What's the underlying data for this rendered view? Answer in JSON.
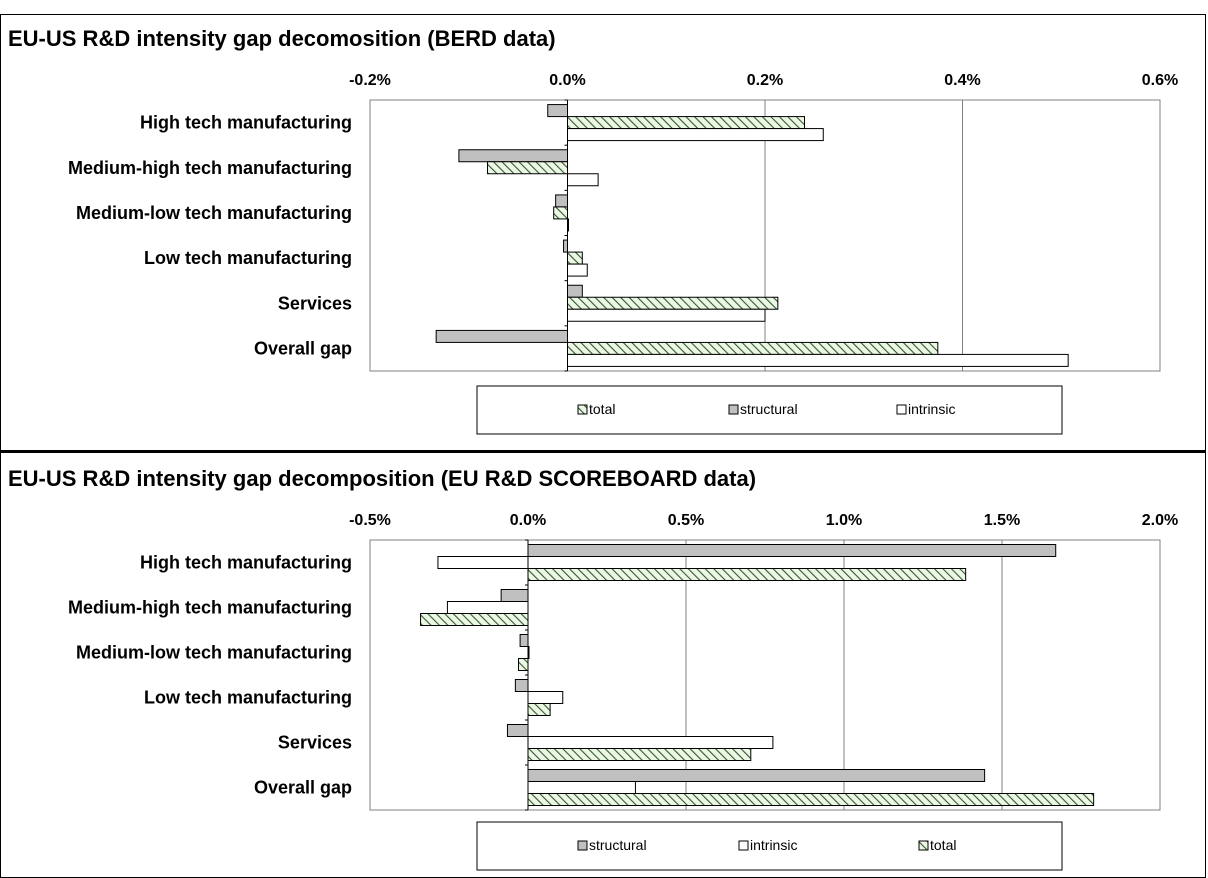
{
  "chart_data": [
    {
      "type": "bar",
      "orientation": "horizontal",
      "title": "EU-US R&D intensity gap decomosition (BERD data)",
      "categories": [
        "High tech manufacturing",
        "Medium-high tech manufacturing",
        "Medium-low tech manufacturing",
        "Low tech manufacturing",
        "Services",
        "Overall gap"
      ],
      "series": [
        {
          "name": "structural",
          "values": [
            -0.02,
            -0.11,
            -0.012,
            -0.004,
            0.015,
            -0.133
          ]
        },
        {
          "name": "total",
          "values": [
            0.24,
            -0.081,
            -0.014,
            0.015,
            0.213,
            0.375
          ]
        },
        {
          "name": "intrinsic",
          "values": [
            0.259,
            0.031,
            0.0,
            0.02,
            0.2,
            0.507
          ]
        }
      ],
      "xlim": [
        -0.2,
        0.6
      ],
      "ticks": [
        "-0.2%",
        "0.0%",
        "0.2%",
        "0.4%",
        "0.6%"
      ],
      "tick_values": [
        -0.2,
        0.0,
        0.2,
        0.4,
        0.6
      ],
      "legend": [
        "total",
        "structural",
        "intrinsic"
      ],
      "legend_position": "bottom",
      "grid": true
    },
    {
      "type": "bar",
      "orientation": "horizontal",
      "title": "EU-US R&D intensity gap decomposition (EU R&D SCOREBOARD  data)",
      "categories": [
        "High tech manufacturing",
        "Medium-high tech manufacturing",
        "Medium-low tech manufacturing",
        "Low tech manufacturing",
        "Services",
        "Overall gap"
      ],
      "series": [
        {
          "name": "structural",
          "values": [
            1.67,
            -0.085,
            -0.025,
            -0.04,
            -0.065,
            1.445
          ]
        },
        {
          "name": "intrinsic",
          "values": [
            -0.285,
            -0.255,
            0.0,
            0.11,
            0.775,
            0.34
          ]
        },
        {
          "name": "total",
          "values": [
            1.385,
            -0.34,
            -0.03,
            0.07,
            0.705,
            1.79
          ]
        }
      ],
      "xlim": [
        -0.5,
        2.0
      ],
      "ticks": [
        "-0.5%",
        "0.0%",
        "0.5%",
        "1.0%",
        "1.5%",
        "2.0%"
      ],
      "tick_values": [
        -0.5,
        0.0,
        0.5,
        1.0,
        1.5,
        2.0
      ],
      "legend": [
        "structural",
        "intrinsic",
        "total"
      ],
      "legend_position": "bottom",
      "grid": true
    }
  ],
  "colors": {
    "structural": "#c0c0c0",
    "intrinsic": "#ffffff",
    "total_hatch": "#2e5b2e",
    "total_fill": "#eef6e6"
  }
}
